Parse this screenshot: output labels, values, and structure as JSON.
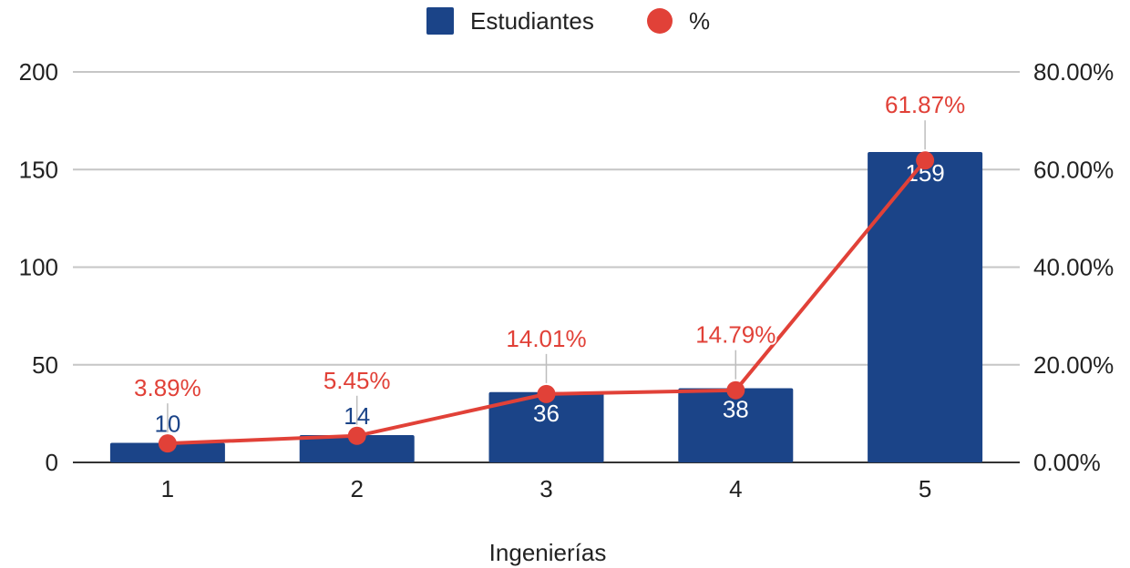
{
  "chart_data": {
    "type": "bar",
    "categories": [
      "1",
      "2",
      "3",
      "4",
      "5"
    ],
    "xlabel": "Ingenierías",
    "legend_position": "top-center",
    "grid": true,
    "y_left": {
      "ylim": [
        0,
        200
      ],
      "ticks": [
        "0",
        "50",
        "100",
        "150",
        "200"
      ]
    },
    "y_right": {
      "ylim": [
        0,
        80
      ],
      "ticks": [
        "0.00%",
        "20.00%",
        "40.00%",
        "60.00%",
        "80.00%"
      ]
    },
    "series": [
      {
        "name": "Estudiantes",
        "type": "bar",
        "axis": "left",
        "color": "#1b4488",
        "values": [
          10,
          14,
          36,
          38,
          159
        ],
        "labels": [
          "10",
          "14",
          "36",
          "38",
          "159"
        ]
      },
      {
        "name": "%",
        "type": "line",
        "axis": "right",
        "color": "#e14138",
        "values": [
          3.89,
          5.45,
          14.01,
          14.79,
          61.87
        ],
        "labels": [
          "3.89%",
          "5.45%",
          "14.01%",
          "14.79%",
          "61.87%"
        ]
      }
    ]
  }
}
